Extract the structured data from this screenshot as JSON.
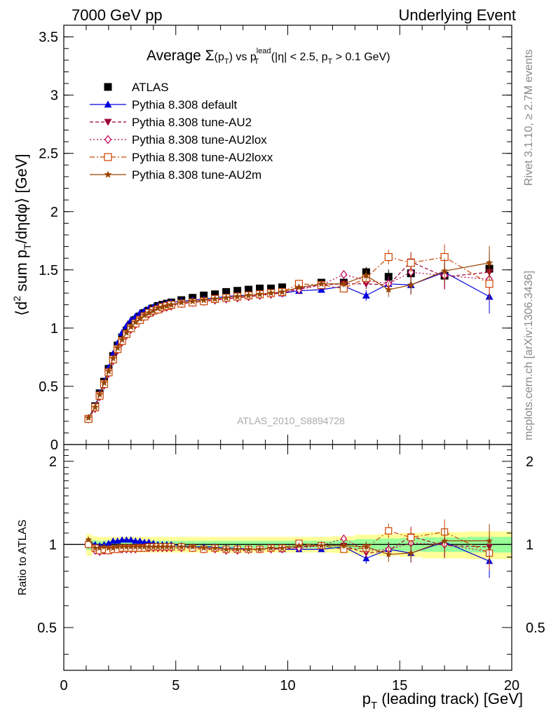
{
  "header": {
    "left": "7000 GeV pp",
    "right": "Underlying Event"
  },
  "side_labels": {
    "rivet": "Rivet 3.1.10, ≥ 2.7M events",
    "mcplots": "mcplots.cern.ch [arXiv:1306.3436]"
  },
  "watermark": "ATLAS_2010_S8894728",
  "plot_title": {
    "prefix": "Average ",
    "sigma": "Σ",
    "paren_open": "(p",
    "sub_t": "T",
    "paren_close": ")",
    "vs": " vs p",
    "sup_lead": "lead",
    "sub_t2": "T",
    "cut1": " (|η| < 2.5, p",
    "sub_t3": "T",
    "cut2": " > 0.1 GeV)"
  },
  "colors": {
    "atlas": "#000000",
    "default": "#0000dd",
    "au2": "#990033",
    "au2lox": "#bb0055",
    "au2loxx": "#cc4400",
    "au2m": "#994400",
    "band_green": "#99ff99",
    "band_yellow": "#ffff99"
  },
  "chart_data": [
    {
      "type": "scatter",
      "panel": "main",
      "ylabel": "⟨d² sum p_T/dηdφ⟩ [GeV]",
      "ylim": [
        0,
        3.6
      ],
      "xlim": [
        0,
        20
      ],
      "yticks": [
        0,
        0.5,
        1,
        1.5,
        2,
        2.5,
        3,
        3.5
      ],
      "ytick_labels": [
        "0",
        "0.5",
        "1",
        "1.5",
        "2",
        "2.5",
        "3",
        "3.5"
      ],
      "x": [
        1.1,
        1.4,
        1.6,
        1.8,
        2.0,
        2.2,
        2.4,
        2.6,
        2.8,
        3.0,
        3.2,
        3.4,
        3.6,
        3.8,
        4.0,
        4.2,
        4.4,
        4.6,
        4.8,
        5.25,
        5.75,
        6.25,
        6.75,
        7.25,
        7.75,
        8.25,
        8.75,
        9.25,
        9.75,
        10.5,
        11.5,
        12.5,
        13.5,
        14.5,
        15.5,
        17.0,
        19.0
      ],
      "series": [
        {
          "name": "ATLAS",
          "key": "atlas",
          "values": [
            0.22,
            0.33,
            0.44,
            0.54,
            0.65,
            0.76,
            0.85,
            0.92,
            0.98,
            1.03,
            1.07,
            1.1,
            1.13,
            1.15,
            1.17,
            1.19,
            1.2,
            1.21,
            1.22,
            1.24,
            1.26,
            1.28,
            1.29,
            1.31,
            1.32,
            1.33,
            1.34,
            1.34,
            1.35,
            1.37,
            1.39,
            1.39,
            1.48,
            1.44,
            1.47,
            1.45,
            1.51
          ]
        },
        {
          "name": "Pythia 8.308 default",
          "key": "default",
          "values": [
            0.23,
            0.33,
            0.44,
            0.54,
            0.66,
            0.78,
            0.87,
            0.96,
            1.02,
            1.07,
            1.1,
            1.13,
            1.15,
            1.17,
            1.18,
            1.19,
            1.2,
            1.21,
            1.22,
            1.23,
            1.24,
            1.25,
            1.26,
            1.27,
            1.28,
            1.28,
            1.29,
            1.3,
            1.3,
            1.32,
            1.33,
            1.36,
            1.28,
            1.38,
            1.37,
            1.48,
            1.27
          ]
        },
        {
          "name": "Pythia 8.308 tune-AU2",
          "key": "au2",
          "values": [
            0.22,
            0.31,
            0.42,
            0.52,
            0.62,
            0.73,
            0.82,
            0.89,
            0.95,
            1.0,
            1.04,
            1.08,
            1.11,
            1.13,
            1.15,
            1.17,
            1.18,
            1.19,
            1.2,
            1.21,
            1.22,
            1.23,
            1.24,
            1.25,
            1.26,
            1.27,
            1.28,
            1.3,
            1.3,
            1.34,
            1.37,
            1.38,
            1.38,
            1.37,
            1.57,
            1.44,
            1.48
          ]
        },
        {
          "name": "Pythia 8.308 tune-AU2lox",
          "key": "au2lox",
          "values": [
            0.22,
            0.31,
            0.41,
            0.51,
            0.61,
            0.72,
            0.81,
            0.88,
            0.94,
            0.99,
            1.03,
            1.07,
            1.1,
            1.12,
            1.14,
            1.16,
            1.17,
            1.18,
            1.19,
            1.21,
            1.22,
            1.23,
            1.24,
            1.25,
            1.26,
            1.27,
            1.28,
            1.29,
            1.3,
            1.33,
            1.37,
            1.46,
            1.41,
            1.38,
            1.48,
            1.45,
            1.42
          ]
        },
        {
          "name": "Pythia 8.308 tune-AU2loxx",
          "key": "au2loxx",
          "values": [
            0.22,
            0.32,
            0.42,
            0.52,
            0.62,
            0.73,
            0.82,
            0.89,
            0.95,
            1.0,
            1.04,
            1.07,
            1.1,
            1.13,
            1.15,
            1.16,
            1.18,
            1.19,
            1.2,
            1.21,
            1.22,
            1.23,
            1.25,
            1.26,
            1.27,
            1.28,
            1.29,
            1.3,
            1.31,
            1.38,
            1.37,
            1.34,
            1.43,
            1.61,
            1.56,
            1.61,
            1.38
          ]
        },
        {
          "name": "Pythia 8.308 tune-AU2m",
          "key": "au2m",
          "values": [
            0.23,
            0.32,
            0.43,
            0.53,
            0.63,
            0.74,
            0.83,
            0.9,
            0.96,
            1.01,
            1.05,
            1.08,
            1.11,
            1.13,
            1.15,
            1.17,
            1.18,
            1.19,
            1.2,
            1.22,
            1.23,
            1.24,
            1.25,
            1.26,
            1.27,
            1.28,
            1.29,
            1.3,
            1.31,
            1.35,
            1.38,
            1.38,
            1.45,
            1.33,
            1.37,
            1.49,
            1.56
          ]
        }
      ]
    },
    {
      "type": "scatter",
      "panel": "ratio",
      "xlabel": "p_T (leading track) [GeV]",
      "ylabel": "Ratio to ATLAS",
      "ylim": [
        0.35,
        2.3
      ],
      "xlim": [
        0,
        20
      ],
      "xticks": [
        0,
        5,
        10,
        15,
        20
      ],
      "xtick_labels": [
        "0",
        "5",
        "10",
        "15",
        "20"
      ],
      "yticks": [
        0.5,
        1,
        2
      ],
      "ytick_labels": [
        "0.5",
        "1",
        "2"
      ],
      "x": [
        1.1,
        1.4,
        1.6,
        1.8,
        2.0,
        2.2,
        2.4,
        2.6,
        2.8,
        3.0,
        3.2,
        3.4,
        3.6,
        3.8,
        4.0,
        4.2,
        4.4,
        4.6,
        4.8,
        5.25,
        5.75,
        6.25,
        6.75,
        7.25,
        7.75,
        8.25,
        8.75,
        9.25,
        9.75,
        10.5,
        11.5,
        12.5,
        13.5,
        14.5,
        15.5,
        17.0,
        19.0
      ],
      "band_edges": [
        1.0,
        1.25,
        1.5,
        1.75,
        1.9,
        2.1,
        2.3,
        2.5,
        2.7,
        2.9,
        3.1,
        3.3,
        3.5,
        3.7,
        3.9,
        4.1,
        4.3,
        4.5,
        4.7,
        5.0,
        5.5,
        6.0,
        6.5,
        7.0,
        7.5,
        8.0,
        8.5,
        9.0,
        9.5,
        10.0,
        11.0,
        12.0,
        13.0,
        14.0,
        15.0,
        16.0,
        18.0,
        20.0
      ],
      "band_inner": [
        0.045,
        0.035,
        0.03,
        0.03,
        0.03,
        0.03,
        0.03,
        0.03,
        0.03,
        0.03,
        0.03,
        0.03,
        0.03,
        0.03,
        0.03,
        0.03,
        0.03,
        0.03,
        0.03,
        0.03,
        0.03,
        0.03,
        0.03,
        0.03,
        0.03,
        0.03,
        0.03,
        0.03,
        0.03,
        0.03,
        0.03,
        0.035,
        0.045,
        0.05,
        0.055,
        0.06,
        0.065
      ],
      "band_outer": [
        0.09,
        0.07,
        0.065,
        0.065,
        0.065,
        0.065,
        0.065,
        0.065,
        0.065,
        0.065,
        0.065,
        0.065,
        0.065,
        0.065,
        0.065,
        0.065,
        0.065,
        0.065,
        0.065,
        0.065,
        0.065,
        0.065,
        0.065,
        0.065,
        0.065,
        0.065,
        0.065,
        0.065,
        0.065,
        0.065,
        0.065,
        0.07,
        0.085,
        0.09,
        0.1,
        0.11,
        0.115
      ],
      "series": [
        {
          "name": "Pythia 8.308 default",
          "key": "default",
          "values": [
            1.03,
            1.0,
            0.99,
            1.0,
            1.01,
            1.03,
            1.03,
            1.04,
            1.04,
            1.04,
            1.03,
            1.03,
            1.02,
            1.02,
            1.01,
            1.0,
            1.0,
            1.0,
            1.0,
            0.99,
            0.98,
            0.98,
            0.98,
            0.97,
            0.97,
            0.96,
            0.96,
            0.97,
            0.96,
            0.96,
            0.96,
            0.98,
            0.89,
            0.96,
            0.93,
            1.02,
            0.87
          ]
        },
        {
          "name": "Pythia 8.308 tune-AU2",
          "key": "au2",
          "values": [
            1.0,
            0.96,
            0.95,
            0.95,
            0.96,
            0.97,
            0.97,
            0.97,
            0.97,
            0.97,
            0.97,
            0.98,
            0.98,
            0.98,
            0.98,
            0.98,
            0.98,
            0.98,
            0.98,
            0.98,
            0.97,
            0.96,
            0.96,
            0.95,
            0.95,
            0.95,
            0.96,
            0.97,
            0.96,
            0.98,
            0.99,
            0.99,
            0.93,
            0.95,
            1.07,
            0.99,
            0.98
          ]
        },
        {
          "name": "Pythia 8.308 tune-AU2lox",
          "key": "au2lox",
          "values": [
            1.0,
            0.95,
            0.94,
            0.95,
            0.95,
            0.96,
            0.96,
            0.96,
            0.96,
            0.96,
            0.96,
            0.97,
            0.97,
            0.97,
            0.97,
            0.97,
            0.97,
            0.97,
            0.97,
            0.97,
            0.97,
            0.96,
            0.96,
            0.95,
            0.95,
            0.96,
            0.96,
            0.96,
            0.96,
            0.97,
            0.99,
            1.05,
            0.95,
            0.96,
            1.01,
            1.0,
            0.94
          ]
        },
        {
          "name": "Pythia 8.308 tune-AU2loxx",
          "key": "au2loxx",
          "values": [
            1.0,
            0.97,
            0.95,
            0.96,
            0.95,
            0.96,
            0.96,
            0.97,
            0.97,
            0.97,
            0.97,
            0.97,
            0.97,
            0.98,
            0.98,
            0.98,
            0.98,
            0.98,
            0.98,
            0.98,
            0.97,
            0.96,
            0.97,
            0.96,
            0.96,
            0.96,
            0.96,
            0.97,
            0.97,
            1.01,
            0.99,
            0.96,
            0.97,
            1.12,
            1.06,
            1.11,
            0.93
          ]
        },
        {
          "name": "Pythia 8.308 tune-AU2m",
          "key": "au2m",
          "values": [
            1.04,
            0.97,
            0.97,
            0.98,
            0.97,
            0.97,
            0.98,
            0.98,
            0.98,
            0.98,
            0.98,
            0.98,
            0.98,
            0.98,
            0.98,
            0.98,
            0.98,
            0.98,
            0.98,
            0.98,
            0.98,
            0.97,
            0.97,
            0.96,
            0.96,
            0.96,
            0.96,
            0.97,
            0.97,
            0.99,
            0.99,
            0.99,
            0.98,
            0.92,
            0.93,
            1.03,
            1.03
          ]
        }
      ]
    }
  ]
}
